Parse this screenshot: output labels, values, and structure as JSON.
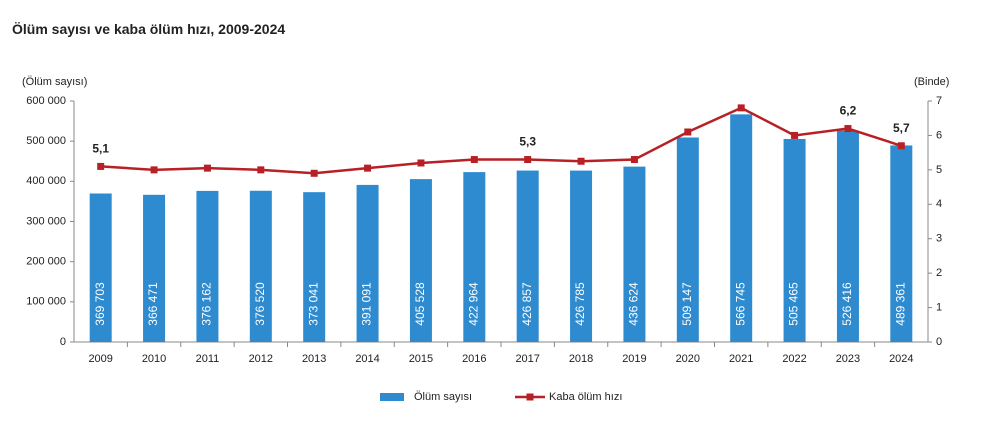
{
  "chart_data": {
    "type": "bar",
    "title": "Ölüm sayısı ve kaba ölüm hızı, 2009-2024",
    "y_label": "(Ölüm sayısı)",
    "y2_label": "(Binde)",
    "categories": [
      "2009",
      "2010",
      "2011",
      "2012",
      "2013",
      "2014",
      "2015",
      "2016",
      "2017",
      "2018",
      "2019",
      "2020",
      "2021",
      "2022",
      "2023",
      "2024"
    ],
    "ylim": [
      0,
      600000
    ],
    "yticks": [
      {
        "value": 0,
        "label": "0"
      },
      {
        "value": 100000,
        "label": "100 000"
      },
      {
        "value": 200000,
        "label": "200 000"
      },
      {
        "value": 300000,
        "label": "300 000"
      },
      {
        "value": 400000,
        "label": "400 000"
      },
      {
        "value": 500000,
        "label": "500 000"
      },
      {
        "value": 600000,
        "label": "600 000"
      }
    ],
    "y2lim": [
      0,
      7
    ],
    "y2ticks": [
      0,
      1,
      2,
      3,
      4,
      5,
      6,
      7
    ],
    "legend": "bottom",
    "series": [
      {
        "name": "Ölüm sayısı",
        "type": "bar",
        "color": "#2e8bd0",
        "values": [
          369703,
          366471,
          376162,
          376520,
          373041,
          391091,
          405528,
          422964,
          426857,
          426785,
          436624,
          509147,
          566745,
          505465,
          526416,
          489361
        ],
        "value_labels": [
          "369 703",
          "366 471",
          "376 162",
          "376 520",
          "373 041",
          "391 091",
          "405 528",
          "422 964",
          "426 857",
          "426 785",
          "436 624",
          "509 147",
          "566 745",
          "505 465",
          "526 416",
          "489 361"
        ]
      },
      {
        "name": "Kaba ölüm hızı",
        "type": "line",
        "axis": "y2",
        "color": "#b82025",
        "values": [
          5.1,
          5.0,
          5.05,
          5.0,
          4.9,
          5.05,
          5.2,
          5.3,
          5.3,
          5.25,
          5.3,
          6.1,
          6.8,
          6.0,
          6.2,
          5.7
        ],
        "value_labels": [
          "5,1",
          null,
          null,
          null,
          null,
          null,
          null,
          null,
          "5,3",
          null,
          null,
          null,
          null,
          null,
          "6,2",
          "5,7"
        ]
      }
    ]
  }
}
